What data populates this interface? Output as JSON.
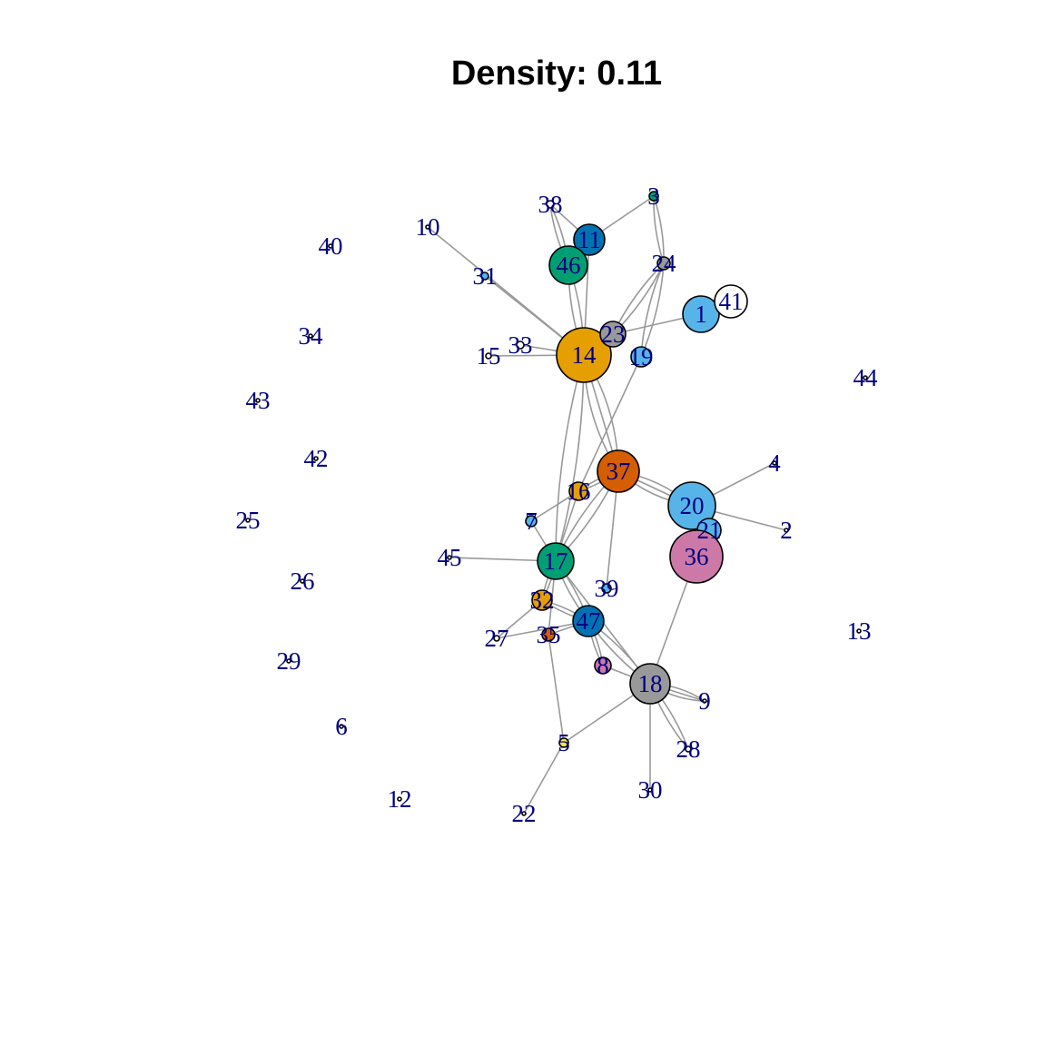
{
  "title": "Density: 0.11",
  "colors": {
    "orange": "#E69F00",
    "skyblue": "#56B4E9",
    "green": "#009E73",
    "yellow": "#F0E442",
    "blue": "#0072B2",
    "vermillion": "#D55E00",
    "pink": "#CC79A7",
    "gray": "#999999",
    "white": "#FFFFFF",
    "edge": "#999999",
    "label": "#000080"
  },
  "nodes": [
    {
      "id": "1",
      "color": "skyblue"
    },
    {
      "id": "2",
      "color": "white"
    },
    {
      "id": "3",
      "color": "green"
    },
    {
      "id": "4",
      "color": "white"
    },
    {
      "id": "5",
      "color": "yellow"
    },
    {
      "id": "6",
      "color": "white"
    },
    {
      "id": "7",
      "color": "skyblue"
    },
    {
      "id": "8",
      "color": "pink"
    },
    {
      "id": "9",
      "color": "white"
    },
    {
      "id": "10",
      "color": "white"
    },
    {
      "id": "11",
      "color": "blue"
    },
    {
      "id": "12",
      "color": "white"
    },
    {
      "id": "13",
      "color": "white"
    },
    {
      "id": "14",
      "color": "orange"
    },
    {
      "id": "15",
      "color": "white"
    },
    {
      "id": "16",
      "color": "orange"
    },
    {
      "id": "17",
      "color": "green"
    },
    {
      "id": "18",
      "color": "gray"
    },
    {
      "id": "19",
      "color": "skyblue"
    },
    {
      "id": "20",
      "color": "skyblue"
    },
    {
      "id": "21",
      "color": "skyblue"
    },
    {
      "id": "22",
      "color": "white"
    },
    {
      "id": "23",
      "color": "gray"
    },
    {
      "id": "24",
      "color": "gray"
    },
    {
      "id": "25",
      "color": "white"
    },
    {
      "id": "26",
      "color": "white"
    },
    {
      "id": "27",
      "color": "white"
    },
    {
      "id": "28",
      "color": "white"
    },
    {
      "id": "29",
      "color": "white"
    },
    {
      "id": "30",
      "color": "white"
    },
    {
      "id": "31",
      "color": "skyblue"
    },
    {
      "id": "32",
      "color": "orange"
    },
    {
      "id": "33",
      "color": "white"
    },
    {
      "id": "34",
      "color": "white"
    },
    {
      "id": "35",
      "color": "vermillion"
    },
    {
      "id": "36",
      "color": "pink"
    },
    {
      "id": "37",
      "color": "vermillion"
    },
    {
      "id": "38",
      "color": "white"
    },
    {
      "id": "39",
      "color": "skyblue"
    },
    {
      "id": "40",
      "color": "white"
    },
    {
      "id": "41",
      "color": "white"
    },
    {
      "id": "42",
      "color": "white"
    },
    {
      "id": "43",
      "color": "white"
    },
    {
      "id": "44",
      "color": "white"
    },
    {
      "id": "45",
      "color": "white"
    },
    {
      "id": "46",
      "color": "green"
    },
    {
      "id": "47",
      "color": "blue"
    }
  ],
  "edges": [
    {
      "source": "10",
      "target": "14"
    },
    {
      "source": "31",
      "target": "14"
    },
    {
      "source": "15",
      "target": "14"
    },
    {
      "source": "33",
      "target": "14"
    },
    {
      "source": "46",
      "target": "14",
      "count": 2
    },
    {
      "source": "11",
      "target": "14"
    },
    {
      "source": "38",
      "target": "11"
    },
    {
      "source": "38",
      "target": "46",
      "count": 2
    },
    {
      "source": "3",
      "target": "11"
    },
    {
      "source": "3",
      "target": "24",
      "count": 2
    },
    {
      "source": "24",
      "target": "23",
      "count": 2
    },
    {
      "source": "24",
      "target": "19",
      "count": 2
    },
    {
      "source": "23",
      "target": "14"
    },
    {
      "source": "23",
      "target": "1"
    },
    {
      "source": "1",
      "target": "41"
    },
    {
      "source": "14",
      "target": "37",
      "count": 3
    },
    {
      "source": "14",
      "target": "17",
      "count": 2
    },
    {
      "source": "19",
      "target": "16"
    },
    {
      "source": "37",
      "target": "20",
      "count": 3
    },
    {
      "source": "37",
      "target": "16",
      "count": 2
    },
    {
      "source": "37",
      "target": "17",
      "count": 2
    },
    {
      "source": "37",
      "target": "39"
    },
    {
      "source": "20",
      "target": "4"
    },
    {
      "source": "20",
      "target": "2"
    },
    {
      "source": "20",
      "target": "21"
    },
    {
      "source": "16",
      "target": "17"
    },
    {
      "source": "7",
      "target": "16"
    },
    {
      "source": "7",
      "target": "17"
    },
    {
      "source": "45",
      "target": "17"
    },
    {
      "source": "17",
      "target": "32",
      "count": 2
    },
    {
      "source": "17",
      "target": "35"
    },
    {
      "source": "17",
      "target": "47",
      "count": 2
    },
    {
      "source": "17",
      "target": "18"
    },
    {
      "source": "32",
      "target": "27"
    },
    {
      "source": "32",
      "target": "47",
      "count": 2
    },
    {
      "source": "27",
      "target": "47"
    },
    {
      "source": "35",
      "target": "47"
    },
    {
      "source": "35",
      "target": "5"
    },
    {
      "source": "47",
      "target": "8",
      "count": 2
    },
    {
      "source": "47",
      "target": "18",
      "count": 2
    },
    {
      "source": "8",
      "target": "18"
    },
    {
      "source": "36",
      "target": "18"
    },
    {
      "source": "18",
      "target": "9",
      "count": 3
    },
    {
      "source": "18",
      "target": "28",
      "count": 2
    },
    {
      "source": "18",
      "target": "30"
    },
    {
      "source": "18",
      "target": "5"
    },
    {
      "source": "5",
      "target": "22"
    }
  ]
}
